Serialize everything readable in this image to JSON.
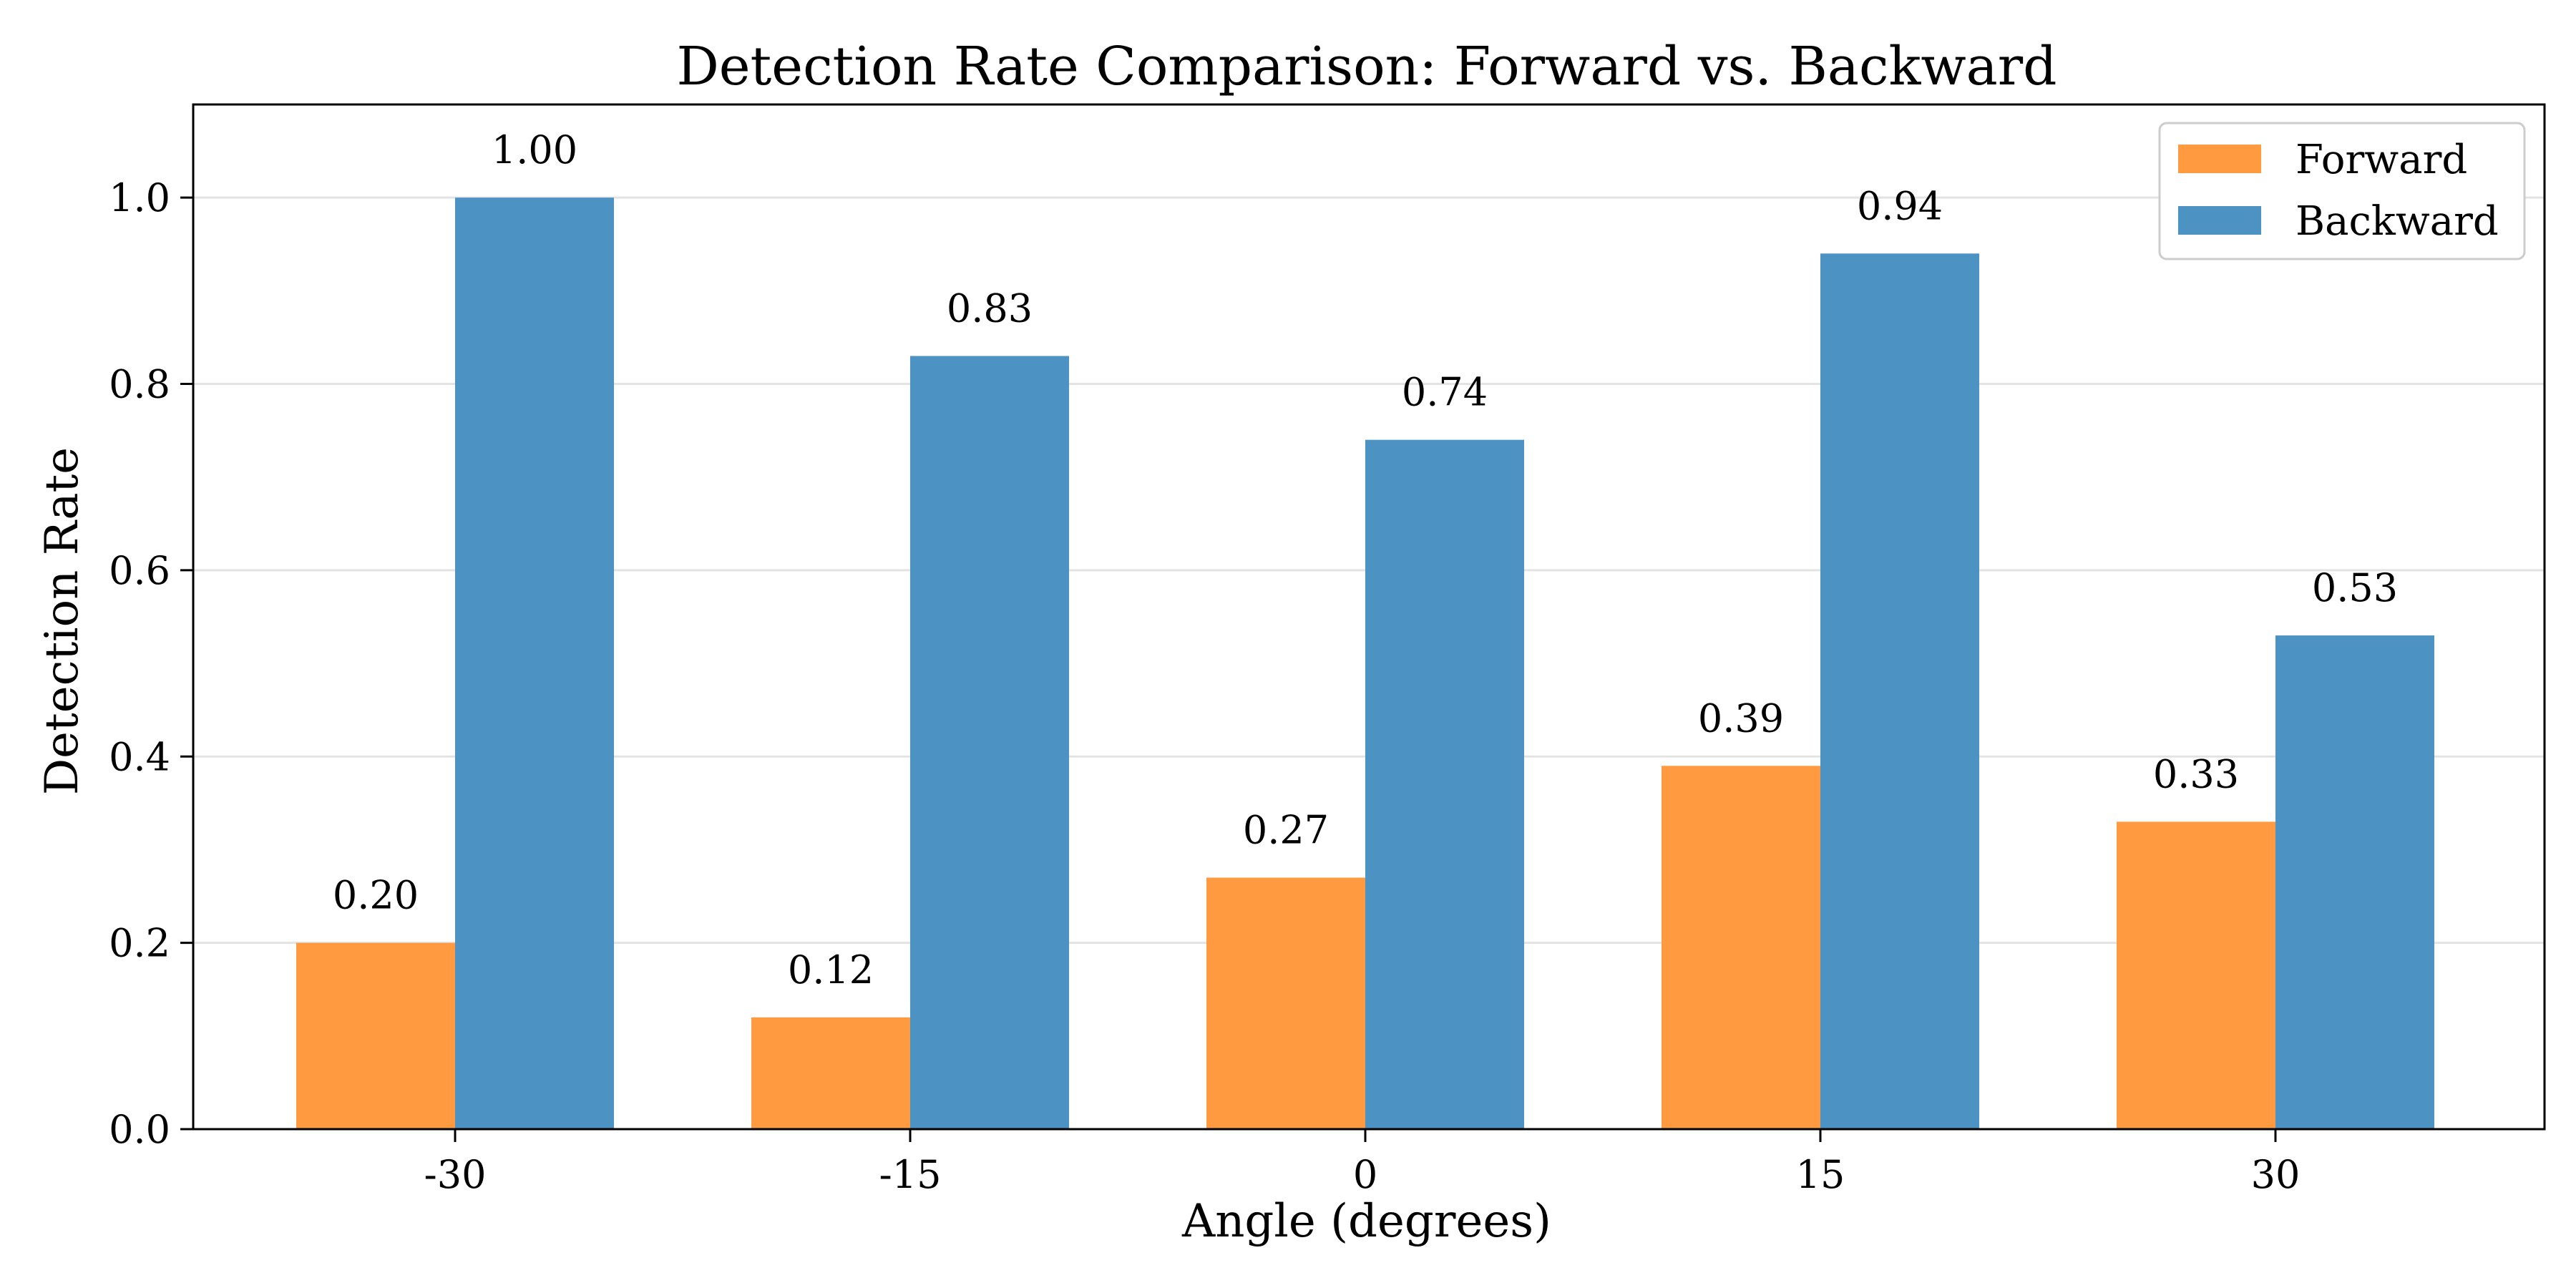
{
  "chart_data": {
    "type": "bar",
    "title": "Detection Rate Comparison: Forward vs. Backward",
    "xlabel": "Angle (degrees)",
    "ylabel": "Detection Rate",
    "categories": [
      "-30",
      "-15",
      "0",
      "15",
      "30"
    ],
    "series": [
      {
        "name": "Forward",
        "color": "#ff9a40",
        "values": [
          0.2,
          0.12,
          0.27,
          0.39,
          0.33
        ]
      },
      {
        "name": "Backward",
        "color": "#4c92c3",
        "values": [
          1.0,
          0.83,
          0.74,
          0.94,
          0.53
        ]
      }
    ],
    "ylim": [
      0,
      1.1
    ],
    "yticks": [
      "0.0",
      "0.2",
      "0.4",
      "0.6",
      "0.8",
      "1.0"
    ],
    "grid": "horizontal",
    "legend_position": "top-right",
    "data_label_format": "2 decimals"
  }
}
